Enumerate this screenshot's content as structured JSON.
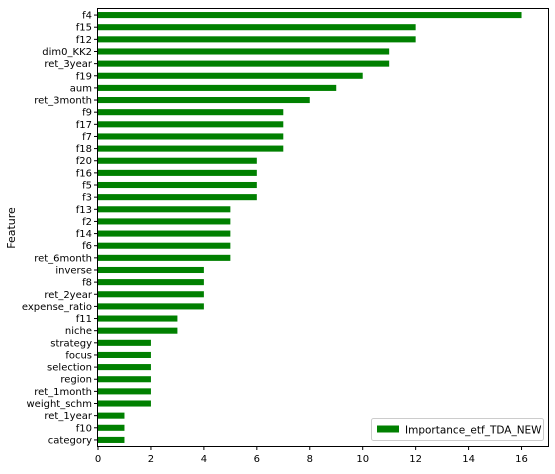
{
  "chart_data": {
    "type": "bar",
    "orientation": "horizontal",
    "title": "",
    "xlabel": "",
    "ylabel": "Feature",
    "xlim": [
      0,
      17
    ],
    "xticks": [
      0,
      2,
      4,
      6,
      8,
      10,
      12,
      14,
      16
    ],
    "grid": false,
    "legend": {
      "placement": "lower-right",
      "entries": [
        "Importance_etf_TDA_NEW"
      ]
    },
    "colors": {
      "bar": "#008000"
    },
    "categories": [
      "f4",
      "f15",
      "f12",
      "dim0_KK2",
      "ret_3year",
      "f19",
      "aum",
      "ret_3month",
      "f9",
      "f17",
      "f7",
      "f18",
      "f20",
      "f16",
      "f5",
      "f3",
      "f13",
      "f2",
      "f14",
      "f6",
      "ret_6month",
      "inverse",
      "f8",
      "ret_2year",
      "expense_ratio",
      "f11",
      "niche",
      "strategy",
      "focus",
      "selection",
      "region",
      "ret_1month",
      "weight_schm",
      "ret_1year",
      "f10",
      "category"
    ],
    "series": [
      {
        "name": "Importance_etf_TDA_NEW",
        "values": [
          16,
          12,
          12,
          11,
          11,
          10,
          9,
          8,
          7,
          7,
          7,
          7,
          6,
          6,
          6,
          6,
          5,
          5,
          5,
          5,
          5,
          4,
          4,
          4,
          4,
          3,
          3,
          2,
          2,
          2,
          2,
          2,
          2,
          1,
          1,
          1
        ]
      }
    ]
  }
}
